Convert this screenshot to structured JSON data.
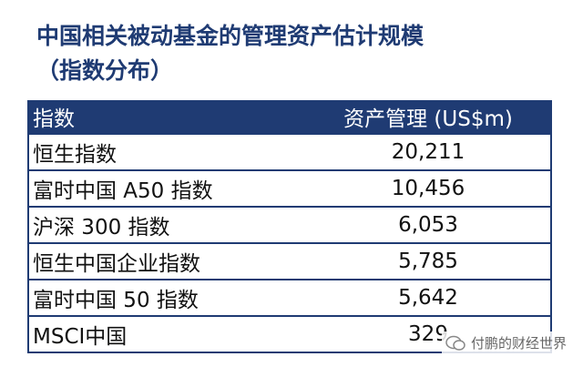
{
  "header": {
    "title": "中国相关被动基金的管理资产估计规模",
    "subtitle": "（指数分布）"
  },
  "table": {
    "columns": [
      "指数",
      "资产管理 (US$m)"
    ],
    "rows": [
      [
        "恒生指数",
        "20,211"
      ],
      [
        "富时中国 A50 指数",
        "10,456"
      ],
      [
        "沪深 300 指数",
        "6,053"
      ],
      [
        "恒生中国企业指数",
        "5,785"
      ],
      [
        "富时中国 50 指数",
        "5,642"
      ],
      [
        "MSCI中国",
        "329"
      ]
    ]
  },
  "watermark": "付鹏的财经世界"
}
